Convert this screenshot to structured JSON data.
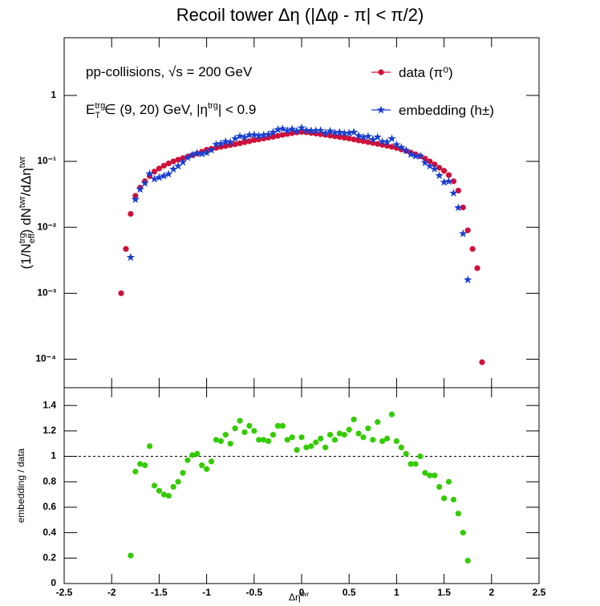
{
  "chart_data": [
    {
      "type": "scatter",
      "title": "Recoil tower Δη (|Δφ - π| < π/2)",
      "y_label": [
        {
          "text": "(1/N"
        },
        {
          "text": "trg",
          "pos": "sup"
        },
        {
          "text": "eff",
          "pos": "sub",
          "stack": true
        },
        {
          "text": ") dN"
        },
        {
          "text": "twr",
          "pos": "sup"
        },
        {
          "text": "/dΔη"
        },
        {
          "text": "twr",
          "pos": "sup"
        }
      ],
      "annotations": [
        [
          {
            "text": "pp-collisions, √s = 200 GeV"
          }
        ],
        [
          {
            "text": "E"
          },
          {
            "text": "trg",
            "pos": "sup"
          },
          {
            "text": "T",
            "pos": "sub",
            "stack": true
          },
          {
            "text": " ∈ (9, 20) GeV, |η"
          },
          {
            "text": "trg",
            "pos": "sup"
          },
          {
            "text": "| < 0.9"
          }
        ]
      ],
      "legend": "top-right",
      "log_y": true,
      "show_x_tick_labels": false,
      "xlim": [
        -2.5,
        2.5
      ],
      "xticks": [
        -2.5,
        -2,
        -1.5,
        -1,
        -0.5,
        0,
        0.5,
        1,
        1.5,
        2,
        2.5
      ],
      "ylim": [
        3.7e-05,
        7.5
      ],
      "yticks": [
        {
          "value": 0.0001,
          "label": "10⁻⁴"
        },
        {
          "value": 0.001,
          "label": "10⁻³"
        },
        {
          "value": 0.01,
          "label": "10⁻²"
        },
        {
          "value": 0.1,
          "label": "10⁻¹"
        },
        1
      ],
      "x": [
        -1.9,
        -1.85,
        -1.8,
        -1.75,
        -1.7,
        -1.65,
        -1.6,
        -1.55,
        -1.5,
        -1.45,
        -1.4,
        -1.35,
        -1.3,
        -1.25,
        -1.2,
        -1.15,
        -1.1,
        -1.05,
        -1.0,
        -0.95,
        -0.9,
        -0.85,
        -0.8,
        -0.75,
        -0.7,
        -0.65,
        -0.6,
        -0.55,
        -0.5,
        -0.45,
        -0.4,
        -0.35,
        -0.3,
        -0.25,
        -0.2,
        -0.15,
        -0.1,
        -0.05,
        0,
        0.05,
        0.1,
        0.15,
        0.2,
        0.25,
        0.3,
        0.35,
        0.4,
        0.45,
        0.5,
        0.55,
        0.6,
        0.65,
        0.7,
        0.75,
        0.8,
        0.85,
        0.9,
        0.95,
        1.0,
        1.05,
        1.1,
        1.15,
        1.2,
        1.25,
        1.3,
        1.35,
        1.4,
        1.45,
        1.5,
        1.55,
        1.6,
        1.65,
        1.7,
        1.75,
        1.8,
        1.85,
        1.9
      ],
      "series": [
        {
          "name": "data (π⁰)",
          "color": "#d0103a",
          "marker": "circle",
          "values": [
            0.001,
            0.0047,
            0.016,
            0.03,
            0.04,
            0.05,
            0.06,
            0.07,
            0.078,
            0.086,
            0.093,
            0.1,
            0.106,
            0.112,
            0.118,
            0.124,
            0.131,
            0.14,
            0.15,
            0.155,
            0.16,
            0.166,
            0.171,
            0.177,
            0.182,
            0.188,
            0.195,
            0.202,
            0.21,
            0.215,
            0.222,
            0.229,
            0.236,
            0.244,
            0.252,
            0.26,
            0.268,
            0.275,
            0.28,
            0.276,
            0.27,
            0.264,
            0.258,
            0.252,
            0.246,
            0.24,
            0.234,
            0.228,
            0.222,
            0.215,
            0.208,
            0.202,
            0.196,
            0.19,
            0.184,
            0.178,
            0.172,
            0.166,
            0.16,
            0.152,
            0.144,
            0.136,
            0.128,
            0.12,
            0.11,
            0.1,
            0.09,
            0.08,
            0.072,
            0.062,
            0.05,
            0.036,
            0.02,
            0.009,
            0.0047,
            0.0024,
            9e-05
          ]
        },
        {
          "name": "embedding (h±)",
          "color": "#1a3fd0",
          "marker": "star",
          "values": [
            null,
            null,
            0.0035,
            0.0264,
            0.0376,
            0.0465,
            0.0648,
            0.0539,
            0.0569,
            0.0602,
            0.0642,
            0.076,
            0.0848,
            0.0974,
            0.1145,
            0.1252,
            0.1336,
            0.1302,
            0.135,
            0.1488,
            0.1808,
            0.1859,
            0.2001,
            0.1947,
            0.222,
            0.2406,
            0.232,
            0.2505,
            0.252,
            0.243,
            0.2509,
            0.2565,
            0.2761,
            0.3026,
            0.3125,
            0.2938,
            0.3082,
            0.2888,
            0.322,
            0.2953,
            0.2916,
            0.293,
            0.2941,
            0.2696,
            0.2878,
            0.2712,
            0.2761,
            0.2668,
            0.2686,
            0.2774,
            0.2454,
            0.2323,
            0.2391,
            0.2147,
            0.2337,
            0.1994,
            0.1961,
            0.2208,
            0.1792,
            0.1626,
            0.1469,
            0.1278,
            0.1203,
            0.12,
            0.0957,
            0.085,
            0.0765,
            0.0608,
            0.0482,
            0.0496,
            0.033,
            0.0198,
            0.008,
            0.0016,
            null,
            null,
            null
          ]
        }
      ]
    },
    {
      "type": "scatter",
      "y_label": [
        {
          "text": "embedding / data"
        }
      ],
      "x_label": [
        {
          "text": "Δη"
        },
        {
          "text": "twr",
          "pos": "sup"
        }
      ],
      "show_x_tick_labels": true,
      "reference_line": 1,
      "xlim": [
        -2.5,
        2.5
      ],
      "xticks": [
        -2.5,
        -2,
        -1.5,
        -1,
        -0.5,
        0,
        0.5,
        1,
        1.5,
        2,
        2.5
      ],
      "ylim": [
        0,
        1.54
      ],
      "yticks": [
        0,
        0.2,
        0.4,
        0.6,
        0.8,
        1,
        1.2,
        1.4
      ],
      "x": [
        -1.8,
        -1.75,
        -1.7,
        -1.65,
        -1.6,
        -1.55,
        -1.5,
        -1.45,
        -1.4,
        -1.35,
        -1.3,
        -1.25,
        -1.2,
        -1.15,
        -1.1,
        -1.05,
        -1.0,
        -0.95,
        -0.9,
        -0.85,
        -0.8,
        -0.75,
        -0.7,
        -0.65,
        -0.6,
        -0.55,
        -0.5,
        -0.45,
        -0.4,
        -0.35,
        -0.3,
        -0.25,
        -0.2,
        -0.15,
        -0.1,
        -0.05,
        0,
        0.05,
        0.1,
        0.15,
        0.2,
        0.25,
        0.3,
        0.35,
        0.4,
        0.45,
        0.5,
        0.55,
        0.6,
        0.65,
        0.7,
        0.75,
        0.8,
        0.85,
        0.9,
        0.95,
        1.0,
        1.05,
        1.1,
        1.15,
        1.2,
        1.25,
        1.3,
        1.35,
        1.4,
        1.45,
        1.5,
        1.55,
        1.6,
        1.65,
        1.7,
        1.75
      ],
      "series": [
        {
          "color": "#33cc00",
          "marker": "circle",
          "values": [
            0.22,
            0.88,
            0.94,
            0.93,
            1.08,
            0.77,
            0.73,
            0.7,
            0.69,
            0.76,
            0.8,
            0.87,
            0.97,
            1.01,
            1.02,
            0.93,
            0.9,
            0.96,
            1.13,
            1.12,
            1.17,
            1.1,
            1.22,
            1.28,
            1.19,
            1.24,
            1.2,
            1.13,
            1.13,
            1.12,
            1.17,
            1.24,
            1.24,
            1.13,
            1.15,
            1.05,
            1.15,
            1.07,
            1.08,
            1.11,
            1.14,
            1.07,
            1.17,
            1.13,
            1.18,
            1.17,
            1.21,
            1.29,
            1.18,
            1.15,
            1.22,
            1.13,
            1.27,
            1.12,
            1.14,
            1.33,
            1.12,
            1.07,
            1.02,
            0.94,
            0.94,
            1.0,
            0.87,
            0.85,
            0.85,
            0.76,
            0.67,
            0.8,
            0.66,
            0.55,
            0.4,
            0.18
          ]
        }
      ]
    }
  ]
}
